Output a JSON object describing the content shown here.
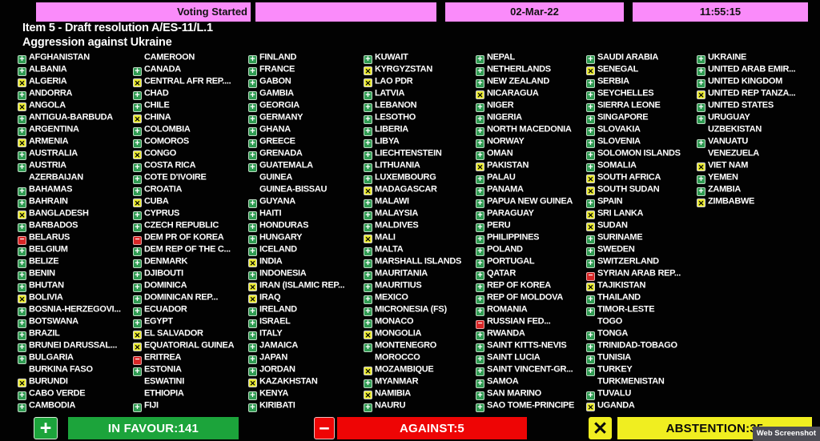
{
  "top_bar": {
    "status": "Voting Started",
    "date": "02-Mar-22",
    "time": "11:55:15"
  },
  "title": {
    "line1": "Item 5 - Draft resolution A/ES-11/L.1",
    "line2": "Aggression against Ukraine"
  },
  "colors": {
    "header_pink": "#fa8bfa",
    "favour_green": "#1ca43b",
    "against_red": "#ee0505",
    "abstain_yellow": "#f0ee20",
    "text_white": "#ffffff",
    "background": "#000000"
  },
  "vote_legend": {
    "Y": "in-favour (green plus)",
    "N": "against (red minus)",
    "A": "abstention (yellow x)",
    "": "not voting (blank)"
  },
  "votes": {
    "columns": [
      [
        [
          "AFGHANISTAN",
          "Y"
        ],
        [
          "ALBANIA",
          "Y"
        ],
        [
          "ALGERIA",
          "A"
        ],
        [
          "ANDORRA",
          "Y"
        ],
        [
          "ANGOLA",
          "A"
        ],
        [
          "ANTIGUA-BARBUDA",
          "Y"
        ],
        [
          "ARGENTINA",
          "Y"
        ],
        [
          "ARMENIA",
          "A"
        ],
        [
          "AUSTRALIA",
          "Y"
        ],
        [
          "AUSTRIA",
          "Y"
        ],
        [
          "AZERBAIJAN",
          ""
        ],
        [
          "BAHAMAS",
          "Y"
        ],
        [
          "BAHRAIN",
          "Y"
        ],
        [
          "BANGLADESH",
          "A"
        ],
        [
          "BARBADOS",
          "Y"
        ],
        [
          "BELARUS",
          "N"
        ],
        [
          "BELGIUM",
          "Y"
        ],
        [
          "BELIZE",
          "Y"
        ],
        [
          "BENIN",
          "Y"
        ],
        [
          "BHUTAN",
          "Y"
        ],
        [
          "BOLIVIA",
          "A"
        ],
        [
          "BOSNIA-HERZEGOVI...",
          "Y"
        ],
        [
          "BOTSWANA",
          "Y"
        ],
        [
          "BRAZIL",
          "Y"
        ],
        [
          "BRUNEI DARUSSAL...",
          "Y"
        ],
        [
          "BULGARIA",
          "Y"
        ],
        [
          "BURKINA FASO",
          ""
        ],
        [
          "BURUNDI",
          "A"
        ],
        [
          "CABO VERDE",
          "Y"
        ],
        [
          "CAMBODIA",
          "Y"
        ]
      ],
      [
        [
          "CAMEROON",
          ""
        ],
        [
          "CANADA",
          "Y"
        ],
        [
          "CENTRAL AFR REP....",
          "A"
        ],
        [
          "CHAD",
          "Y"
        ],
        [
          "CHILE",
          "Y"
        ],
        [
          "CHINA",
          "A"
        ],
        [
          "COLOMBIA",
          "Y"
        ],
        [
          "COMOROS",
          "Y"
        ],
        [
          "CONGO",
          "A"
        ],
        [
          "COSTA RICA",
          "Y"
        ],
        [
          "COTE D'IVOIRE",
          "Y"
        ],
        [
          "CROATIA",
          "Y"
        ],
        [
          "CUBA",
          "A"
        ],
        [
          "CYPRUS",
          "Y"
        ],
        [
          "CZECH REPUBLIC",
          "Y"
        ],
        [
          "DEM PR OF KOREA",
          "N"
        ],
        [
          "DEM REP OF THE C...",
          "Y"
        ],
        [
          "DENMARK",
          "Y"
        ],
        [
          "DJIBOUTI",
          "Y"
        ],
        [
          "DOMINICA",
          "Y"
        ],
        [
          "DOMINICAN REP...",
          "Y"
        ],
        [
          "ECUADOR",
          "Y"
        ],
        [
          "EGYPT",
          "Y"
        ],
        [
          "EL SALVADOR",
          "A"
        ],
        [
          "EQUATORIAL GUINEA",
          "A"
        ],
        [
          "ERITREA",
          "N"
        ],
        [
          "ESTONIA",
          "Y"
        ],
        [
          "ESWATINI",
          ""
        ],
        [
          "ETHIOPIA",
          ""
        ],
        [
          "FIJI",
          "Y"
        ]
      ],
      [
        [
          "FINLAND",
          "Y"
        ],
        [
          "FRANCE",
          "Y"
        ],
        [
          "GABON",
          "Y"
        ],
        [
          "GAMBIA",
          "Y"
        ],
        [
          "GEORGIA",
          "Y"
        ],
        [
          "GERMANY",
          "Y"
        ],
        [
          "GHANA",
          "Y"
        ],
        [
          "GREECE",
          "Y"
        ],
        [
          "GRENADA",
          "Y"
        ],
        [
          "GUATEMALA",
          "Y"
        ],
        [
          "GUINEA",
          ""
        ],
        [
          "GUINEA-BISSAU",
          ""
        ],
        [
          "GUYANA",
          "Y"
        ],
        [
          "HAITI",
          "Y"
        ],
        [
          "HONDURAS",
          "Y"
        ],
        [
          "HUNGARY",
          "Y"
        ],
        [
          "ICELAND",
          "Y"
        ],
        [
          "INDIA",
          "A"
        ],
        [
          "INDONESIA",
          "Y"
        ],
        [
          "IRAN (ISLAMIC REP...",
          "A"
        ],
        [
          "IRAQ",
          "A"
        ],
        [
          "IRELAND",
          "Y"
        ],
        [
          "ISRAEL",
          "Y"
        ],
        [
          "ITALY",
          "Y"
        ],
        [
          "JAMAICA",
          "Y"
        ],
        [
          "JAPAN",
          "Y"
        ],
        [
          "JORDAN",
          "Y"
        ],
        [
          "KAZAKHSTAN",
          "A"
        ],
        [
          "KENYA",
          "Y"
        ],
        [
          "KIRIBATI",
          "Y"
        ]
      ],
      [
        [
          "KUWAIT",
          "Y"
        ],
        [
          "KYRGYZSTAN",
          "A"
        ],
        [
          "LAO PDR",
          "A"
        ],
        [
          "LATVIA",
          "Y"
        ],
        [
          "LEBANON",
          "Y"
        ],
        [
          "LESOTHO",
          "Y"
        ],
        [
          "LIBERIA",
          "Y"
        ],
        [
          "LIBYA",
          "Y"
        ],
        [
          "LIECHTENSTEIN",
          "Y"
        ],
        [
          "LITHUANIA",
          "Y"
        ],
        [
          "LUXEMBOURG",
          "Y"
        ],
        [
          "MADAGASCAR",
          "A"
        ],
        [
          "MALAWI",
          "Y"
        ],
        [
          "MALAYSIA",
          "Y"
        ],
        [
          "MALDIVES",
          "Y"
        ],
        [
          "MALI",
          "A"
        ],
        [
          "MALTA",
          "Y"
        ],
        [
          "MARSHALL ISLANDS",
          "Y"
        ],
        [
          "MAURITANIA",
          "Y"
        ],
        [
          "MAURITIUS",
          "Y"
        ],
        [
          "MEXICO",
          "Y"
        ],
        [
          "MICRONESIA (FS)",
          "Y"
        ],
        [
          "MONACO",
          "Y"
        ],
        [
          "MONGOLIA",
          "A"
        ],
        [
          "MONTENEGRO",
          "Y"
        ],
        [
          "MOROCCO",
          ""
        ],
        [
          "MOZAMBIQUE",
          "A"
        ],
        [
          "MYANMAR",
          "Y"
        ],
        [
          "NAMIBIA",
          "A"
        ],
        [
          "NAURU",
          "Y"
        ]
      ],
      [
        [
          "NEPAL",
          "Y"
        ],
        [
          "NETHERLANDS",
          "Y"
        ],
        [
          "NEW ZEALAND",
          "Y"
        ],
        [
          "NICARAGUA",
          "A"
        ],
        [
          "NIGER",
          "Y"
        ],
        [
          "NIGERIA",
          "Y"
        ],
        [
          "NORTH MACEDONIA",
          "Y"
        ],
        [
          "NORWAY",
          "Y"
        ],
        [
          "OMAN",
          "Y"
        ],
        [
          "PAKISTAN",
          "A"
        ],
        [
          "PALAU",
          "Y"
        ],
        [
          "PANAMA",
          "Y"
        ],
        [
          "PAPUA NEW GUINEA",
          "Y"
        ],
        [
          "PARAGUAY",
          "Y"
        ],
        [
          "PERU",
          "Y"
        ],
        [
          "PHILIPPINES",
          "Y"
        ],
        [
          "POLAND",
          "Y"
        ],
        [
          "PORTUGAL",
          "Y"
        ],
        [
          "QATAR",
          "Y"
        ],
        [
          "REP OF KOREA",
          "Y"
        ],
        [
          "REP OF MOLDOVA",
          "Y"
        ],
        [
          "ROMANIA",
          "Y"
        ],
        [
          "RUSSIAN FED...",
          "N"
        ],
        [
          "RWANDA",
          "Y"
        ],
        [
          "SAINT KITTS-NEVIS",
          "Y"
        ],
        [
          "SAINT LUCIA",
          "Y"
        ],
        [
          "SAINT VINCENT-GR...",
          "Y"
        ],
        [
          "SAMOA",
          "Y"
        ],
        [
          "SAN MARINO",
          "Y"
        ],
        [
          "SAO TOME-PRINCIPE",
          "Y"
        ]
      ],
      [
        [
          "SAUDI ARABIA",
          "Y"
        ],
        [
          "SENEGAL",
          "A"
        ],
        [
          "SERBIA",
          "Y"
        ],
        [
          "SEYCHELLES",
          "Y"
        ],
        [
          "SIERRA LEONE",
          "Y"
        ],
        [
          "SINGAPORE",
          "Y"
        ],
        [
          "SLOVAKIA",
          "Y"
        ],
        [
          "SLOVENIA",
          "Y"
        ],
        [
          "SOLOMON ISLANDS",
          "Y"
        ],
        [
          "SOMALIA",
          "Y"
        ],
        [
          "SOUTH AFRICA",
          "A"
        ],
        [
          "SOUTH SUDAN",
          "A"
        ],
        [
          "SPAIN",
          "Y"
        ],
        [
          "SRI LANKA",
          "A"
        ],
        [
          "SUDAN",
          "A"
        ],
        [
          "SURINAME",
          "Y"
        ],
        [
          "SWEDEN",
          "Y"
        ],
        [
          "SWITZERLAND",
          "Y"
        ],
        [
          "SYRIAN ARAB REP...",
          "N"
        ],
        [
          "TAJIKISTAN",
          "A"
        ],
        [
          "THAILAND",
          "Y"
        ],
        [
          "TIMOR-LESTE",
          "Y"
        ],
        [
          "TOGO",
          ""
        ],
        [
          "TONGA",
          "Y"
        ],
        [
          "TRINIDAD-TOBAGO",
          "Y"
        ],
        [
          "TUNISIA",
          "Y"
        ],
        [
          "TURKEY",
          "Y"
        ],
        [
          "TURKMENISTAN",
          ""
        ],
        [
          "TUVALU",
          "Y"
        ],
        [
          "UGANDA",
          "A"
        ]
      ],
      [
        [
          "UKRAINE",
          "Y"
        ],
        [
          "UNITED ARAB EMIR...",
          "Y"
        ],
        [
          "UNITED KINGDOM",
          "Y"
        ],
        [
          "UNITED REP TANZA...",
          "A"
        ],
        [
          "UNITED STATES",
          "Y"
        ],
        [
          "URUGUAY",
          "Y"
        ],
        [
          "UZBEKISTAN",
          ""
        ],
        [
          "VANUATU",
          "Y"
        ],
        [
          "VENEZUELA",
          ""
        ],
        [
          "VIET NAM",
          "A"
        ],
        [
          "YEMEN",
          "Y"
        ],
        [
          "ZAMBIA",
          "Y"
        ],
        [
          "ZIMBABWE",
          "A"
        ]
      ]
    ]
  },
  "summary": {
    "in_favour_label": "IN FAVOUR:141",
    "against_label": "AGAINST:5",
    "abstention_label": "ABSTENTION:35",
    "in_favour": 141,
    "against": 5,
    "abstention": 35,
    "plus_glyph": "+",
    "minus_glyph": "−",
    "x_glyph": "✕"
  },
  "watermark": "Web Screenshot"
}
